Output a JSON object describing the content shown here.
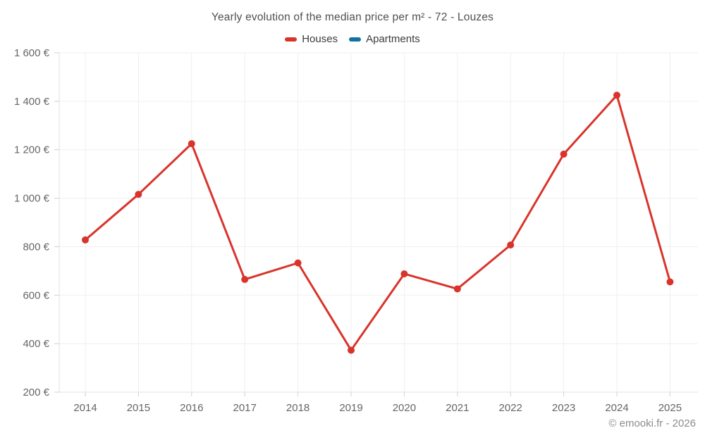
{
  "page": {
    "footer": "© emooki.fr - 2026"
  },
  "chart_data": {
    "type": "line",
    "title": "Yearly evolution of the median price per m² - 72 - Louzes",
    "categories": [
      "2014",
      "2015",
      "2016",
      "2017",
      "2018",
      "2019",
      "2020",
      "2021",
      "2022",
      "2023",
      "2024",
      "2025"
    ],
    "series": [
      {
        "name": "Houses",
        "color": "#d9342c",
        "values": [
          828,
          1016,
          1225,
          665,
          733,
          373,
          688,
          626,
          807,
          1182,
          1425,
          655
        ]
      },
      {
        "name": "Apartments",
        "color": "#1172a2",
        "values": []
      }
    ],
    "xlabel": "",
    "ylabel": "",
    "ylim": [
      200,
      1600
    ],
    "y_ticks": [
      200,
      400,
      600,
      800,
      1000,
      1200,
      1400,
      1600
    ],
    "y_tick_labels": [
      "200 €",
      "400 €",
      "600 €",
      "800 €",
      "1 000 €",
      "1 200 €",
      "1 400 €",
      "1 600 €"
    ],
    "grid": true,
    "legend_position": "top",
    "colors": {
      "grid": "#efefef",
      "axis": "#e0e0e0",
      "tick": "#cfcfcf",
      "axis_text": "#666666"
    }
  }
}
